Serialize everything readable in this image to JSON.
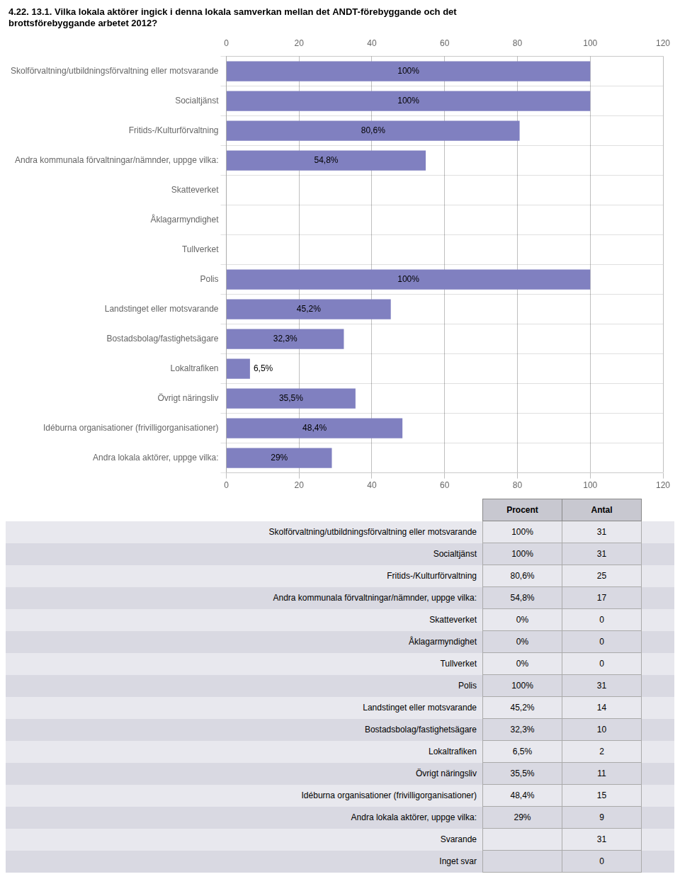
{
  "chart_data": {
    "type": "bar",
    "orientation": "horizontal",
    "title": "4.22. 13.1. Vilka lokala aktörer ingick i denna lokala samverkan mellan det ANDT-förebyggande och det\nbrottsförebyggande arbetet 2012?",
    "categories": [
      "Skolförvaltning/utbildningsförvaltning eller motsvarande",
      "Socialtjänst",
      "Fritids-/Kulturförvaltning",
      "Andra kommunala förvaltningar/nämnder, uppge vilka:",
      "Skatteverket",
      "Åklagarmyndighet",
      "Tullverket",
      "Polis",
      "Landstinget eller motsvarande",
      "Bostadsbolag/fastighetsägare",
      "Lokaltrafiken",
      "Övrigt näringsliv",
      "Idéburna organisationer (frivilligorganisationer)",
      "Andra lokala aktörer, uppge vilka:"
    ],
    "values": [
      100,
      100,
      80.6,
      54.8,
      0,
      0,
      0,
      100,
      45.2,
      32.3,
      6.5,
      35.5,
      48.4,
      29
    ],
    "value_labels": [
      "100%",
      "100%",
      "80,6%",
      "54,8%",
      null,
      null,
      null,
      "100%",
      "45,2%",
      "32,3%",
      "6,5%",
      "35,5%",
      "48,4%",
      "29%"
    ],
    "data_labels": true,
    "color": "#8080c0",
    "xlim": [
      0,
      120
    ],
    "xticks": [
      0,
      20,
      40,
      60,
      80,
      100,
      120
    ],
    "grid": true,
    "table": {
      "columns": [
        "Procent",
        "Antal"
      ],
      "rows": [
        {
          "label": "Skolförvaltning/utbildningsförvaltning eller motsvarande",
          "procent": "100%",
          "antal": 31
        },
        {
          "label": "Socialtjänst",
          "procent": "100%",
          "antal": 31
        },
        {
          "label": "Fritids-/Kulturförvaltning",
          "procent": "80,6%",
          "antal": 25
        },
        {
          "label": "Andra kommunala förvaltningar/nämnder, uppge vilka:",
          "procent": "54,8%",
          "antal": 17
        },
        {
          "label": "Skatteverket",
          "procent": "0%",
          "antal": 0
        },
        {
          "label": "Åklagarmyndighet",
          "procent": "0%",
          "antal": 0
        },
        {
          "label": "Tullverket",
          "procent": "0%",
          "antal": 0
        },
        {
          "label": "Polis",
          "procent": "100%",
          "antal": 31
        },
        {
          "label": "Landstinget eller motsvarande",
          "procent": "45,2%",
          "antal": 14
        },
        {
          "label": "Bostadsbolag/fastighetsägare",
          "procent": "32,3%",
          "antal": 10
        },
        {
          "label": "Lokaltrafiken",
          "procent": "6,5%",
          "antal": 2
        },
        {
          "label": "Övrigt näringsliv",
          "procent": "35,5%",
          "antal": 11
        },
        {
          "label": "Idéburna organisationer (frivilligorganisationer)",
          "procent": "48,4%",
          "antal": 15
        },
        {
          "label": "Andra lokala aktörer, uppge vilka:",
          "procent": "29%",
          "antal": 9
        },
        {
          "label": "Svarande",
          "procent": null,
          "antal": 31
        },
        {
          "label": "Inget svar",
          "procent": null,
          "antal": 0
        }
      ]
    }
  }
}
